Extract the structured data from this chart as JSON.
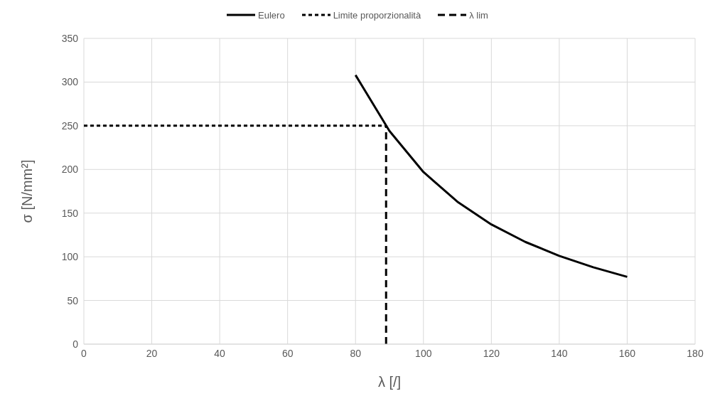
{
  "chart_data": {
    "type": "line",
    "xlabel": "λ [/]",
    "ylabel": "σ [N/mm²]",
    "xlim": [
      0,
      180
    ],
    "xticks": [
      0,
      20,
      40,
      60,
      80,
      100,
      120,
      140,
      160,
      180
    ],
    "ylim": [
      0,
      350
    ],
    "yticks": [
      0,
      50,
      100,
      150,
      200,
      250,
      300,
      350
    ],
    "grid": true,
    "legend": "top",
    "marker": "none",
    "series": [
      {
        "name": "Eulero",
        "color": "#000000",
        "line_style": "solid",
        "x": [
          80,
          90,
          100,
          110,
          120,
          130,
          140,
          150,
          160
        ],
        "values": [
          308,
          244,
          197,
          163,
          137,
          117,
          101,
          88,
          77
        ]
      },
      {
        "name": "Limite proporzionalità",
        "color": "#000000",
        "line_style": "dotted",
        "x": [
          0,
          89
        ],
        "values": [
          250,
          250
        ]
      },
      {
        "name": "λ lim",
        "color": "#000000",
        "line_style": "dashed",
        "x": [
          89,
          89
        ],
        "values": [
          0,
          250
        ]
      }
    ]
  }
}
